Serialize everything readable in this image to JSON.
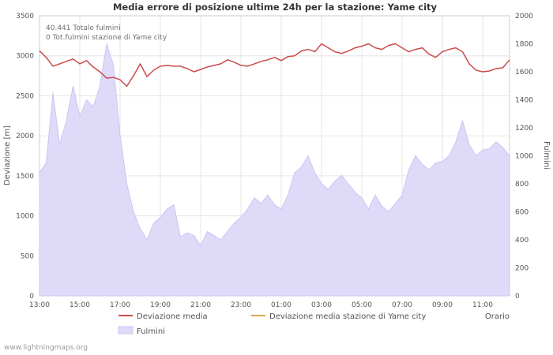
{
  "title": "Media errore di posizione ultime 24h per la stazione: Yame city",
  "annotations": {
    "line1": "40.441 Totale fulmini",
    "line2": "0 Tot.fulmini stazione di Yame city"
  },
  "axes": {
    "left_label": "Deviazione [m]",
    "right_label": "Fulmini",
    "x_label": "Orario"
  },
  "legend": {
    "series1": "Deviazione media",
    "series2": "Deviazione media stazione di Yame city",
    "series3": "Fulmini"
  },
  "watermark": "www.lightningmaps.org",
  "colors": {
    "deviazione": "#cb4b4b",
    "stazione": "#dfa64a",
    "fulmini_fill": "#dedaf8",
    "fulmini_edge": "#cbc6f2",
    "grid": "#e6e6e6",
    "border": "#cccccc",
    "axis_text": "#545454",
    "title_text": "#333333"
  },
  "chart_data": {
    "type": "line+area",
    "title": "Media errore di posizione ultime 24h per la stazione: Yame city",
    "x_ticks": [
      "13:00",
      "15:00",
      "17:00",
      "19:00",
      "21:00",
      "23:00",
      "01:00",
      "03:00",
      "05:00",
      "07:00",
      "09:00",
      "11:00"
    ],
    "x_tick_hours": [
      0,
      2,
      4,
      6,
      8,
      10,
      12,
      14,
      16,
      18,
      20,
      22
    ],
    "span_hours": 23.333,
    "interval_minutes": 20,
    "left_axis": {
      "label": "Deviazione [m]",
      "min": 0,
      "max": 3500,
      "ticks": [
        0,
        500,
        1000,
        1500,
        2000,
        2500,
        3000,
        3500
      ]
    },
    "right_axis": {
      "label": "Fulmini",
      "min": 0,
      "max": 2000,
      "ticks": [
        0,
        200,
        400,
        600,
        800,
        1000,
        1200,
        1400,
        1600,
        1800,
        2000
      ]
    },
    "series": [
      {
        "name": "Deviazione media",
        "axis": "left",
        "type": "line",
        "color": "#cb4b4b",
        "values": [
          3060,
          2980,
          2870,
          2900,
          2930,
          2960,
          2900,
          2940,
          2860,
          2800,
          2720,
          2730,
          2700,
          2620,
          2750,
          2900,
          2740,
          2820,
          2870,
          2880,
          2870,
          2870,
          2840,
          2800,
          2830,
          2860,
          2880,
          2900,
          2950,
          2920,
          2880,
          2870,
          2900,
          2930,
          2950,
          2980,
          2940,
          2990,
          3000,
          3060,
          3080,
          3050,
          3150,
          3100,
          3050,
          3030,
          3060,
          3100,
          3120,
          3150,
          3100,
          3080,
          3130,
          3150,
          3100,
          3050,
          3080,
          3100,
          3020,
          2980,
          3050,
          3080,
          3100,
          3050,
          2900,
          2820,
          2800,
          2810,
          2840,
          2850,
          2950
        ]
      },
      {
        "name": "Deviazione media stazione di Yame city",
        "axis": "left",
        "type": "line",
        "color": "#dfa64a",
        "values": []
      },
      {
        "name": "Fulmini",
        "axis": "right",
        "type": "area",
        "color": "#dedaf8",
        "values": [
          880,
          950,
          1450,
          1080,
          1250,
          1500,
          1280,
          1400,
          1350,
          1500,
          1800,
          1650,
          1150,
          800,
          600,
          480,
          400,
          520,
          560,
          620,
          650,
          420,
          450,
          430,
          360,
          460,
          430,
          400,
          460,
          520,
          560,
          620,
          700,
          660,
          720,
          650,
          620,
          720,
          880,
          920,
          1000,
          880,
          800,
          760,
          820,
          860,
          800,
          740,
          700,
          620,
          720,
          640,
          600,
          660,
          720,
          900,
          1000,
          940,
          900,
          950,
          960,
          1000,
          1100,
          1250,
          1080,
          1000,
          1040,
          1050,
          1100,
          1060,
          1000
        ]
      }
    ]
  }
}
